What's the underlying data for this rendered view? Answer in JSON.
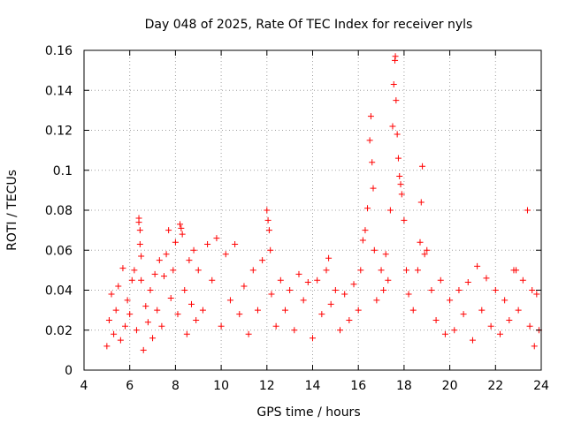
{
  "chart_data": {
    "type": "scatter",
    "title": "Day 048 of 2025, Rate Of TEC Index for receiver nyls",
    "xlabel": "GPS time / hours",
    "ylabel": "ROTI / TECUs",
    "xlim": [
      4,
      24
    ],
    "ylim": [
      0,
      0.16
    ],
    "x_ticks": [
      4,
      6,
      8,
      10,
      12,
      14,
      16,
      18,
      20,
      22,
      24
    ],
    "x_tick_labels": [
      "4",
      "6",
      "8",
      "10",
      "12",
      "14",
      "16",
      "18",
      "20",
      "22",
      "24"
    ],
    "y_ticks": [
      0,
      0.02,
      0.04,
      0.06,
      0.08,
      0.1,
      0.12,
      0.14,
      0.16
    ],
    "y_tick_labels": [
      "0",
      "0.02",
      "0.04",
      "0.06",
      "0.08",
      "0.1",
      "0.12",
      "0.14",
      "0.16"
    ],
    "grid": true,
    "marker": "+",
    "color": "#ff0000",
    "series": [
      {
        "name": "ROTI",
        "points": [
          [
            5.0,
            0.012
          ],
          [
            5.1,
            0.025
          ],
          [
            5.2,
            0.038
          ],
          [
            5.3,
            0.018
          ],
          [
            5.4,
            0.03
          ],
          [
            5.5,
            0.042
          ],
          [
            5.6,
            0.015
          ],
          [
            5.7,
            0.051
          ],
          [
            5.8,
            0.022
          ],
          [
            5.9,
            0.035
          ],
          [
            6.0,
            0.028
          ],
          [
            6.1,
            0.045
          ],
          [
            6.2,
            0.05
          ],
          [
            6.3,
            0.02
          ],
          [
            6.4,
            0.076
          ],
          [
            6.4,
            0.074
          ],
          [
            6.45,
            0.07
          ],
          [
            6.45,
            0.063
          ],
          [
            6.5,
            0.057
          ],
          [
            6.5,
            0.045
          ],
          [
            6.6,
            0.01
          ],
          [
            6.7,
            0.032
          ],
          [
            6.8,
            0.024
          ],
          [
            6.9,
            0.04
          ],
          [
            7.0,
            0.016
          ],
          [
            7.1,
            0.048
          ],
          [
            7.2,
            0.03
          ],
          [
            7.3,
            0.055
          ],
          [
            7.4,
            0.022
          ],
          [
            7.5,
            0.047
          ],
          [
            7.6,
            0.058
          ],
          [
            7.7,
            0.07
          ],
          [
            7.8,
            0.036
          ],
          [
            7.9,
            0.05
          ],
          [
            8.0,
            0.064
          ],
          [
            8.1,
            0.028
          ],
          [
            8.2,
            0.073
          ],
          [
            8.25,
            0.071
          ],
          [
            8.3,
            0.068
          ],
          [
            8.4,
            0.04
          ],
          [
            8.5,
            0.018
          ],
          [
            8.6,
            0.055
          ],
          [
            8.7,
            0.033
          ],
          [
            8.8,
            0.06
          ],
          [
            8.9,
            0.025
          ],
          [
            9.0,
            0.05
          ],
          [
            9.2,
            0.03
          ],
          [
            9.4,
            0.063
          ],
          [
            9.6,
            0.045
          ],
          [
            9.8,
            0.066
          ],
          [
            10.0,
            0.022
          ],
          [
            10.2,
            0.058
          ],
          [
            10.4,
            0.035
          ],
          [
            10.6,
            0.063
          ],
          [
            10.8,
            0.028
          ],
          [
            11.0,
            0.042
          ],
          [
            11.2,
            0.018
          ],
          [
            11.4,
            0.05
          ],
          [
            11.6,
            0.03
          ],
          [
            11.8,
            0.055
          ],
          [
            12.0,
            0.08
          ],
          [
            12.05,
            0.075
          ],
          [
            12.1,
            0.07
          ],
          [
            12.15,
            0.06
          ],
          [
            12.2,
            0.038
          ],
          [
            12.4,
            0.022
          ],
          [
            12.6,
            0.045
          ],
          [
            12.8,
            0.03
          ],
          [
            13.0,
            0.04
          ],
          [
            13.2,
            0.02
          ],
          [
            13.4,
            0.048
          ],
          [
            13.6,
            0.035
          ],
          [
            13.8,
            0.044
          ],
          [
            14.0,
            0.016
          ],
          [
            14.2,
            0.045
          ],
          [
            14.4,
            0.028
          ],
          [
            14.6,
            0.05
          ],
          [
            14.7,
            0.056
          ],
          [
            14.8,
            0.033
          ],
          [
            15.0,
            0.04
          ],
          [
            15.2,
            0.02
          ],
          [
            15.4,
            0.038
          ],
          [
            15.6,
            0.025
          ],
          [
            15.8,
            0.043
          ],
          [
            16.0,
            0.03
          ],
          [
            16.1,
            0.05
          ],
          [
            16.2,
            0.065
          ],
          [
            16.3,
            0.07
          ],
          [
            16.4,
            0.081
          ],
          [
            16.5,
            0.115
          ],
          [
            16.55,
            0.127
          ],
          [
            16.6,
            0.104
          ],
          [
            16.65,
            0.091
          ],
          [
            16.7,
            0.06
          ],
          [
            16.8,
            0.035
          ],
          [
            17.0,
            0.05
          ],
          [
            17.1,
            0.04
          ],
          [
            17.2,
            0.058
          ],
          [
            17.3,
            0.045
          ],
          [
            17.4,
            0.08
          ],
          [
            17.5,
            0.122
          ],
          [
            17.55,
            0.143
          ],
          [
            17.6,
            0.155
          ],
          [
            17.62,
            0.157
          ],
          [
            17.65,
            0.135
          ],
          [
            17.7,
            0.118
          ],
          [
            17.75,
            0.106
          ],
          [
            17.8,
            0.097
          ],
          [
            17.85,
            0.093
          ],
          [
            17.9,
            0.088
          ],
          [
            18.0,
            0.075
          ],
          [
            18.1,
            0.05
          ],
          [
            18.2,
            0.038
          ],
          [
            18.4,
            0.03
          ],
          [
            18.6,
            0.05
          ],
          [
            18.7,
            0.064
          ],
          [
            18.75,
            0.084
          ],
          [
            18.8,
            0.102
          ],
          [
            18.9,
            0.058
          ],
          [
            19.0,
            0.06
          ],
          [
            19.2,
            0.04
          ],
          [
            19.4,
            0.025
          ],
          [
            19.6,
            0.045
          ],
          [
            19.8,
            0.018
          ],
          [
            20.0,
            0.035
          ],
          [
            20.2,
            0.02
          ],
          [
            20.4,
            0.04
          ],
          [
            20.6,
            0.028
          ],
          [
            20.8,
            0.044
          ],
          [
            21.0,
            0.015
          ],
          [
            21.2,
            0.052
          ],
          [
            21.4,
            0.03
          ],
          [
            21.6,
            0.046
          ],
          [
            21.8,
            0.022
          ],
          [
            22.0,
            0.04
          ],
          [
            22.2,
            0.018
          ],
          [
            22.4,
            0.035
          ],
          [
            22.6,
            0.025
          ],
          [
            22.8,
            0.05
          ],
          [
            22.9,
            0.05
          ],
          [
            23.0,
            0.03
          ],
          [
            23.2,
            0.045
          ],
          [
            23.4,
            0.08
          ],
          [
            23.5,
            0.022
          ],
          [
            23.6,
            0.04
          ],
          [
            23.7,
            0.012
          ],
          [
            23.8,
            0.038
          ],
          [
            23.9,
            0.02
          ]
        ]
      }
    ]
  }
}
